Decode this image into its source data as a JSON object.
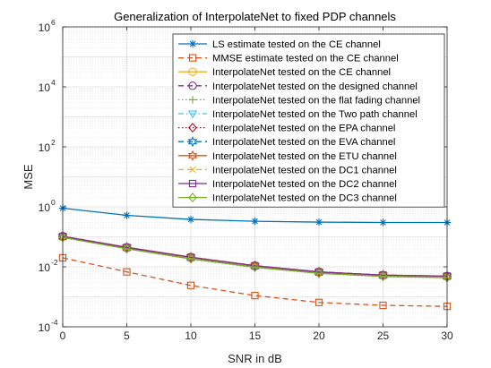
{
  "chart_data": {
    "type": "line",
    "title": "Generalization of InterpolateNet to fixed PDP channels",
    "xlabel": "SNR in dB",
    "ylabel": "MSE",
    "x": [
      0,
      5,
      10,
      15,
      20,
      25,
      30
    ],
    "xlim": [
      0,
      30
    ],
    "ylim": [
      0.0001,
      1000000
    ],
    "yscale": "log",
    "xticks": [
      "0",
      "5",
      "10",
      "15",
      "20",
      "25",
      "30"
    ],
    "yticks": [
      {
        "value": 0.0001,
        "base": "10",
        "exp": "-4"
      },
      {
        "value": 0.01,
        "base": "10",
        "exp": "-2"
      },
      {
        "value": 1,
        "base": "10",
        "exp": "0"
      },
      {
        "value": 100,
        "base": "10",
        "exp": "2"
      },
      {
        "value": 10000,
        "base": "10",
        "exp": "4"
      },
      {
        "value": 1000000,
        "base": "10",
        "exp": "6"
      }
    ],
    "grid": true,
    "minor_grid": true,
    "legend_position": "top-right",
    "series": [
      {
        "name": "LS estimate tested on the CE channel",
        "color": "#0072BD",
        "dash": "solid",
        "marker": "asterisk",
        "values": [
          0.9,
          0.52,
          0.38,
          0.33,
          0.31,
          0.3,
          0.3
        ]
      },
      {
        "name": "MMSE estimate tested on the CE channel",
        "color": "#D95319",
        "dash": "dashed",
        "marker": "square",
        "values": [
          0.02,
          0.0068,
          0.0024,
          0.0011,
          0.00065,
          0.00052,
          0.00048
        ]
      },
      {
        "name": "InterpolateNet tested on the CE channel",
        "color": "#EDB120",
        "dash": "solid",
        "marker": "circle",
        "values": [
          0.1,
          0.043,
          0.02,
          0.0105,
          0.0066,
          0.0052,
          0.0048
        ]
      },
      {
        "name": "InterpolateNet tested on the designed channel",
        "color": "#7E2F8E",
        "dash": "dashed",
        "marker": "circle",
        "values": [
          0.105,
          0.045,
          0.021,
          0.011,
          0.0068,
          0.0053,
          0.0049
        ]
      },
      {
        "name": "InterpolateNet tested on the flat fading channel",
        "color": "#77AC30",
        "dash": "dotted",
        "marker": "plus",
        "values": [
          0.095,
          0.04,
          0.018,
          0.0095,
          0.006,
          0.0047,
          0.0043
        ]
      },
      {
        "name": "InterpolateNet tested on the Two path channel",
        "color": "#4DBEEE",
        "dash": "dashdot",
        "marker": "triangle-down",
        "values": [
          0.098,
          0.041,
          0.019,
          0.0099,
          0.0062,
          0.0049,
          0.0045
        ]
      },
      {
        "name": "InterpolateNet tested on the EPA channel",
        "color": "#A2142F",
        "dash": "dotted",
        "marker": "diamond",
        "values": [
          0.1,
          0.043,
          0.02,
          0.0104,
          0.0065,
          0.0051,
          0.0047
        ]
      },
      {
        "name": "InterpolateNet tested on the EVA channel",
        "color": "#0072BD",
        "dash": "dashed",
        "marker": "hexagram",
        "values": [
          0.102,
          0.044,
          0.0205,
          0.0107,
          0.0067,
          0.0052,
          0.0048
        ]
      },
      {
        "name": "InterpolateNet tested on the ETU channel",
        "color": "#D95319",
        "dash": "solid",
        "marker": "hexagram",
        "values": [
          0.104,
          0.045,
          0.021,
          0.0109,
          0.0068,
          0.0053,
          0.0049
        ]
      },
      {
        "name": "InterpolateNet tested on the DC1 channel",
        "color": "#EDB120",
        "dash": "dashed",
        "marker": "x",
        "values": [
          0.099,
          0.042,
          0.0195,
          0.0101,
          0.0063,
          0.005,
          0.0046
        ]
      },
      {
        "name": "InterpolateNet tested on the DC2 channel",
        "color": "#7E2F8E",
        "dash": "solid",
        "marker": "square",
        "values": [
          0.103,
          0.044,
          0.0207,
          0.0108,
          0.0067,
          0.0053,
          0.0049
        ]
      },
      {
        "name": "InterpolateNet tested on the DC3 channel",
        "color": "#77AC30",
        "dash": "solid",
        "marker": "diamond",
        "values": [
          0.096,
          0.04,
          0.0185,
          0.0097,
          0.0061,
          0.0048,
          0.0044
        ]
      }
    ]
  }
}
